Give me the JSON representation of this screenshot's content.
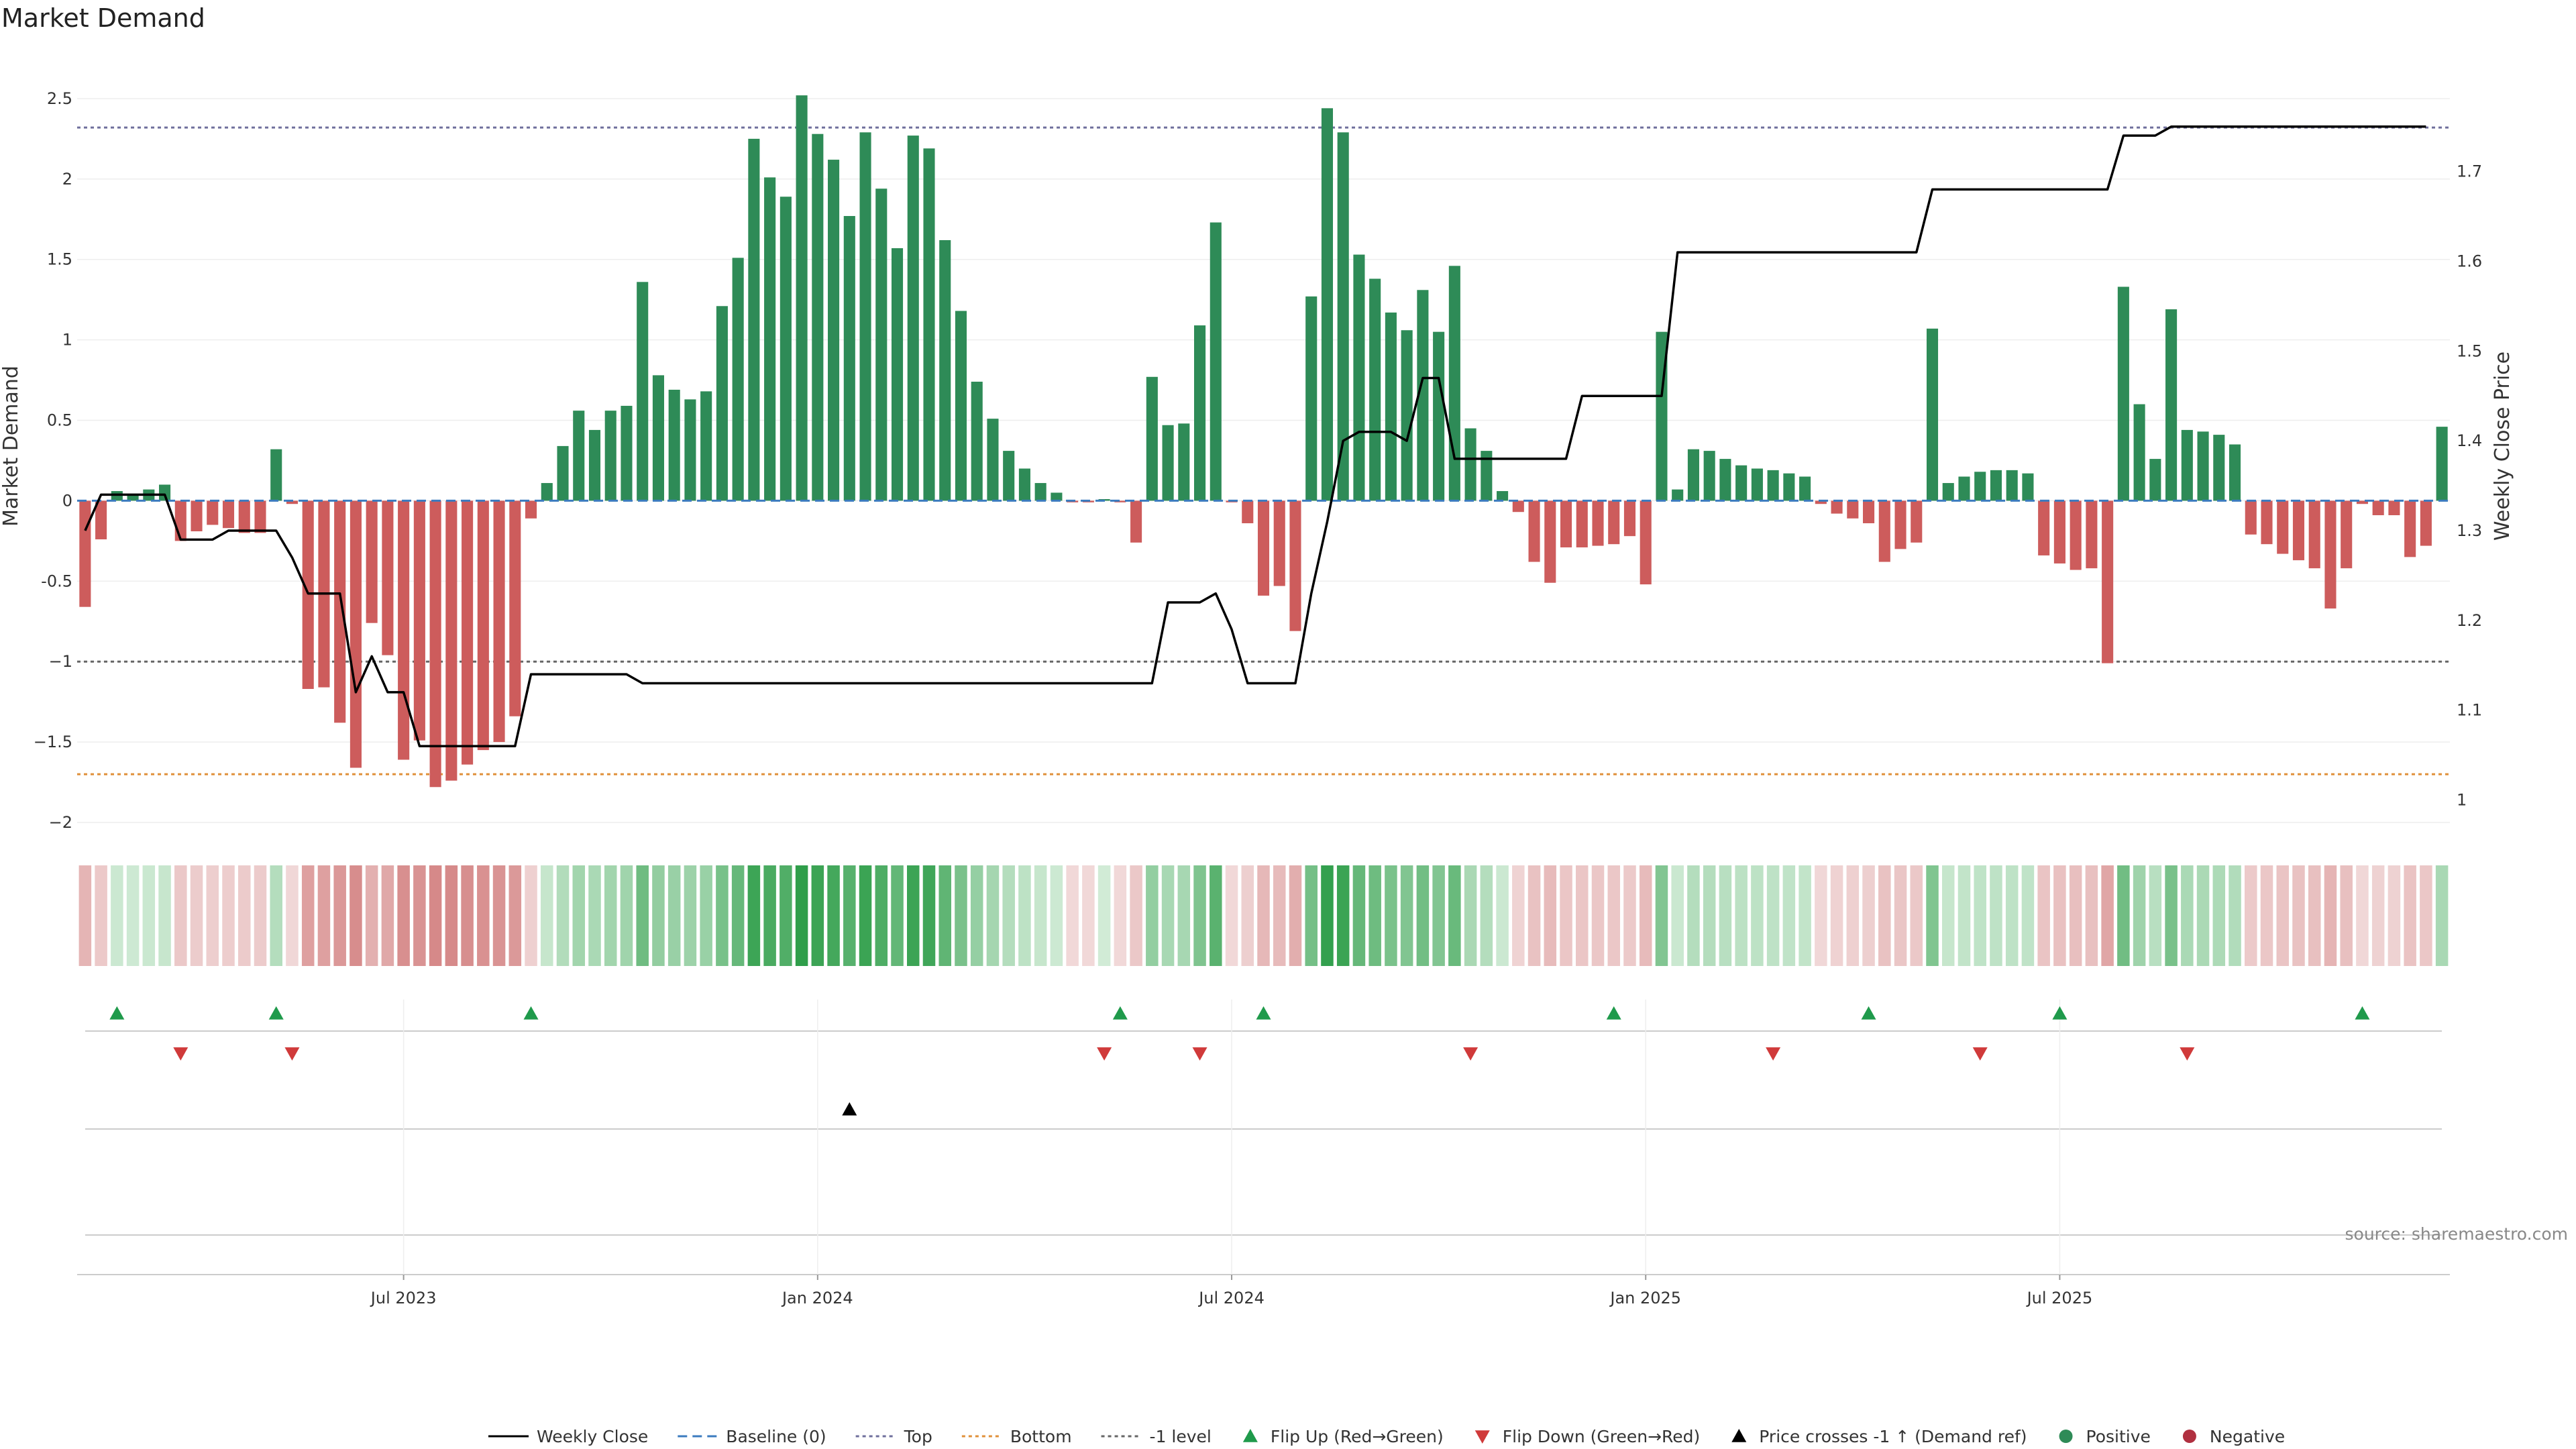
{
  "chart_data": {
    "type": "bar",
    "title": "Market Demand",
    "ylabel_left": "Market Demand",
    "ylabel_right": "Weekly Close Price",
    "left_ticks": [
      "2.5",
      "2",
      "1.5",
      "1",
      "0.5",
      "0",
      "-0.5",
      "−1",
      "−1.5",
      "−2"
    ],
    "left_tick_values": [
      2.5,
      2,
      1.5,
      1,
      0.5,
      0,
      -0.5,
      -1,
      -1.5,
      -2
    ],
    "right_ticks": [
      "1.7",
      "1.6",
      "1.5",
      "1.4",
      "1.3",
      "1.2",
      "1.1",
      "1"
    ],
    "right_tick_values": [
      1.7,
      1.6,
      1.5,
      1.4,
      1.3,
      1.2,
      1.1,
      1.0
    ],
    "x_ticks": [
      "Jul 2023",
      "Jan 2024",
      "Jul 2024",
      "Jan 2025",
      "Jul 2025"
    ],
    "x_tick_weeks": [
      20,
      46,
      72,
      98,
      124
    ],
    "ylim_left": [
      -2.1,
      2.8
    ],
    "ylim_right": [
      0.957,
      1.835
    ],
    "reference_lines": {
      "top": 2.32,
      "bottom": -1.7,
      "minus_one": -1.0,
      "baseline": 0
    },
    "demand": [
      -0.66,
      -0.24,
      0.06,
      0.04,
      0.07,
      0.1,
      -0.25,
      -0.19,
      -0.15,
      -0.17,
      -0.2,
      -0.2,
      0.32,
      -0.02,
      -1.17,
      -1.16,
      -1.38,
      -1.66,
      -0.76,
      -0.96,
      -1.61,
      -1.49,
      -1.78,
      -1.74,
      -1.64,
      -1.55,
      -1.5,
      -1.34,
      -0.11,
      0.11,
      0.34,
      0.56,
      0.44,
      0.56,
      0.59,
      1.36,
      0.78,
      0.69,
      0.63,
      0.68,
      1.21,
      1.51,
      2.25,
      2.01,
      1.89,
      2.52,
      2.28,
      2.12,
      1.77,
      2.29,
      1.94,
      1.57,
      2.27,
      2.19,
      1.62,
      1.18,
      0.74,
      0.51,
      0.31,
      0.2,
      0.11,
      0.05,
      -0.01,
      -0.01,
      0.01,
      -0.01,
      -0.26,
      0.77,
      0.47,
      0.48,
      1.09,
      1.73,
      -0.01,
      -0.14,
      -0.59,
      -0.53,
      -0.81,
      1.27,
      2.44,
      2.29,
      1.53,
      1.38,
      1.17,
      1.06,
      1.31,
      1.05,
      1.46,
      0.45,
      0.31,
      0.06,
      -0.07,
      -0.38,
      -0.51,
      -0.29,
      -0.29,
      -0.28,
      -0.27,
      -0.22,
      -0.52,
      1.05,
      0.07,
      0.32,
      0.31,
      0.26,
      0.22,
      0.2,
      0.19,
      0.17,
      0.15,
      -0.02,
      -0.08,
      -0.11,
      -0.14,
      -0.38,
      -0.3,
      -0.26,
      1.07,
      0.11,
      0.15,
      0.18,
      0.19,
      0.19,
      0.17,
      -0.34,
      -0.39,
      -0.43,
      -0.42,
      -1.01,
      1.33,
      0.6,
      0.26,
      1.19,
      0.44,
      0.43,
      0.41,
      0.35,
      -0.21,
      -0.27,
      -0.33,
      -0.37,
      -0.42,
      -0.67,
      -0.42,
      -0.02,
      -0.09,
      -0.09,
      -0.35,
      -0.28,
      0.46
    ],
    "weekly_close": [
      1.3,
      1.34,
      1.34,
      1.34,
      1.34,
      1.34,
      1.29,
      1.29,
      1.29,
      1.3,
      1.3,
      1.3,
      1.3,
      1.27,
      1.23,
      1.23,
      1.23,
      1.12,
      1.16,
      1.12,
      1.12,
      1.06,
      1.06,
      1.06,
      1.06,
      1.06,
      1.06,
      1.06,
      1.14,
      1.14,
      1.14,
      1.14,
      1.14,
      1.14,
      1.14,
      1.13,
      1.13,
      1.13,
      1.13,
      1.13,
      1.13,
      1.13,
      1.13,
      1.13,
      1.13,
      1.13,
      1.13,
      1.13,
      1.13,
      1.13,
      1.13,
      1.13,
      1.13,
      1.13,
      1.13,
      1.13,
      1.13,
      1.13,
      1.13,
      1.13,
      1.13,
      1.13,
      1.13,
      1.13,
      1.13,
      1.13,
      1.13,
      1.13,
      1.22,
      1.22,
      1.22,
      1.23,
      1.19,
      1.13,
      1.13,
      1.13,
      1.13,
      1.23,
      1.31,
      1.4,
      1.41,
      1.41,
      1.41,
      1.4,
      1.47,
      1.47,
      1.38,
      1.38,
      1.38,
      1.38,
      1.38,
      1.38,
      1.38,
      1.38,
      1.45,
      1.45,
      1.45,
      1.45,
      1.45,
      1.45,
      1.61,
      1.61,
      1.61,
      1.61,
      1.61,
      1.61,
      1.61,
      1.61,
      1.61,
      1.61,
      1.61,
      1.61,
      1.61,
      1.61,
      1.61,
      1.61,
      1.68,
      1.68,
      1.68,
      1.68,
      1.68,
      1.68,
      1.68,
      1.68,
      1.68,
      1.68,
      1.68,
      1.68,
      1.74,
      1.74,
      1.74,
      1.75,
      1.75,
      1.75,
      1.75,
      1.75,
      1.75,
      1.75,
      1.75,
      1.75,
      1.75,
      1.75,
      1.75,
      1.75,
      1.75,
      1.75,
      1.75,
      1.75
    ],
    "flip_up_weeks": [
      2,
      12,
      28,
      65,
      74,
      96,
      112,
      124,
      143
    ],
    "flip_down_weeks": [
      6,
      13,
      64,
      70,
      87,
      106,
      119,
      132
    ],
    "price_cross_weeks": [
      48
    ],
    "legend": [
      {
        "label": "Weekly Close",
        "kind": "solid-line",
        "color": "#000000"
      },
      {
        "label": "Baseline (0)",
        "kind": "dashed-line",
        "color": "#3b7bbf"
      },
      {
        "label": "Top",
        "kind": "dotted-line",
        "color": "#6f6f9c"
      },
      {
        "label": "Bottom",
        "kind": "dotted-line",
        "color": "#e0903a"
      },
      {
        "label": "-1 level",
        "kind": "dotted-line",
        "color": "#666666"
      },
      {
        "label": "Flip Up (Red→Green)",
        "kind": "triangle-up",
        "color": "#1f9a4b"
      },
      {
        "label": "Flip Down (Green→Red)",
        "kind": "triangle-down",
        "color": "#d03a3a"
      },
      {
        "label": "Price crosses -1 ↑ (Demand ref)",
        "kind": "triangle-up",
        "color": "#000000"
      },
      {
        "label": "Positive",
        "kind": "dot",
        "color": "#2e8b57"
      },
      {
        "label": "Negative",
        "kind": "dot",
        "color": "#b03040"
      }
    ],
    "legend_placement": "bottom-center",
    "colors": {
      "positive": "#2e8b57",
      "negative": "#cd5c5c",
      "heat_pos_light": "#d3ecd8",
      "heat_pos_dark": "#2f9e4a",
      "heat_neg_light": "#f1d9d9",
      "heat_neg_dark": "#cd6f6f",
      "grid": "#eeeeee",
      "close_line": "#000000"
    }
  },
  "source": "source: sharemaestro.com"
}
